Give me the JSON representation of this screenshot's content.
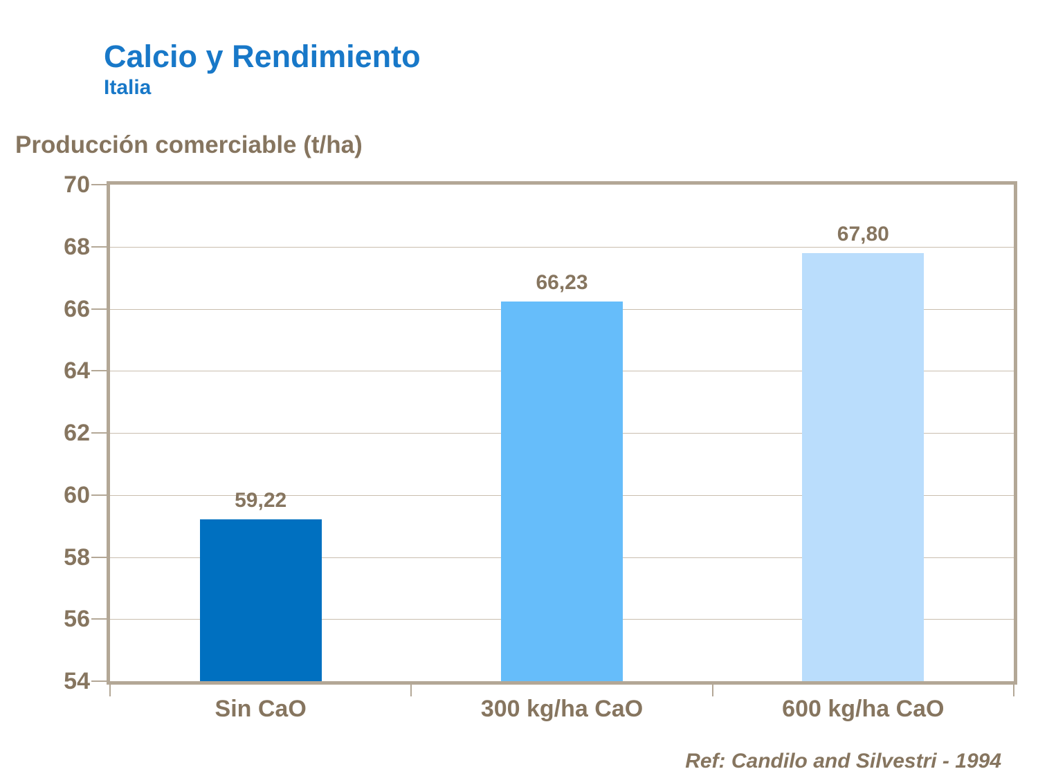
{
  "page": {
    "title": "Calcio y Rendimiento",
    "subtitle": "Italia",
    "reference": "Ref: Candilo and Silvestri - 1994"
  },
  "colors": {
    "title_blue": "#1878C8",
    "text_brown": "#86755F",
    "gridline": "#C9BDAE",
    "axis_frame": "#B3A796",
    "bars": [
      "#0070C0",
      "#66BDFA",
      "#BADDFC"
    ]
  },
  "chart_data": {
    "type": "bar",
    "title": "Calcio y Rendimiento - Italia",
    "ylabel": "Producción comerciable (t/ha)",
    "xlabel": "",
    "categories": [
      "Sin CaO",
      "300 kg/ha CaO",
      "600 kg/ha CaO"
    ],
    "values": [
      59.22,
      66.23,
      67.8
    ],
    "value_labels": [
      "59,22",
      "66,23",
      "67,80"
    ],
    "ylim": [
      54,
      70
    ],
    "ytick_step": 2,
    "yticks": [
      54,
      56,
      58,
      60,
      62,
      64,
      66,
      68,
      70
    ],
    "grid": true,
    "legend_position": "none",
    "annotation": "Ref: Candilo and Silvestri - 1994"
  }
}
